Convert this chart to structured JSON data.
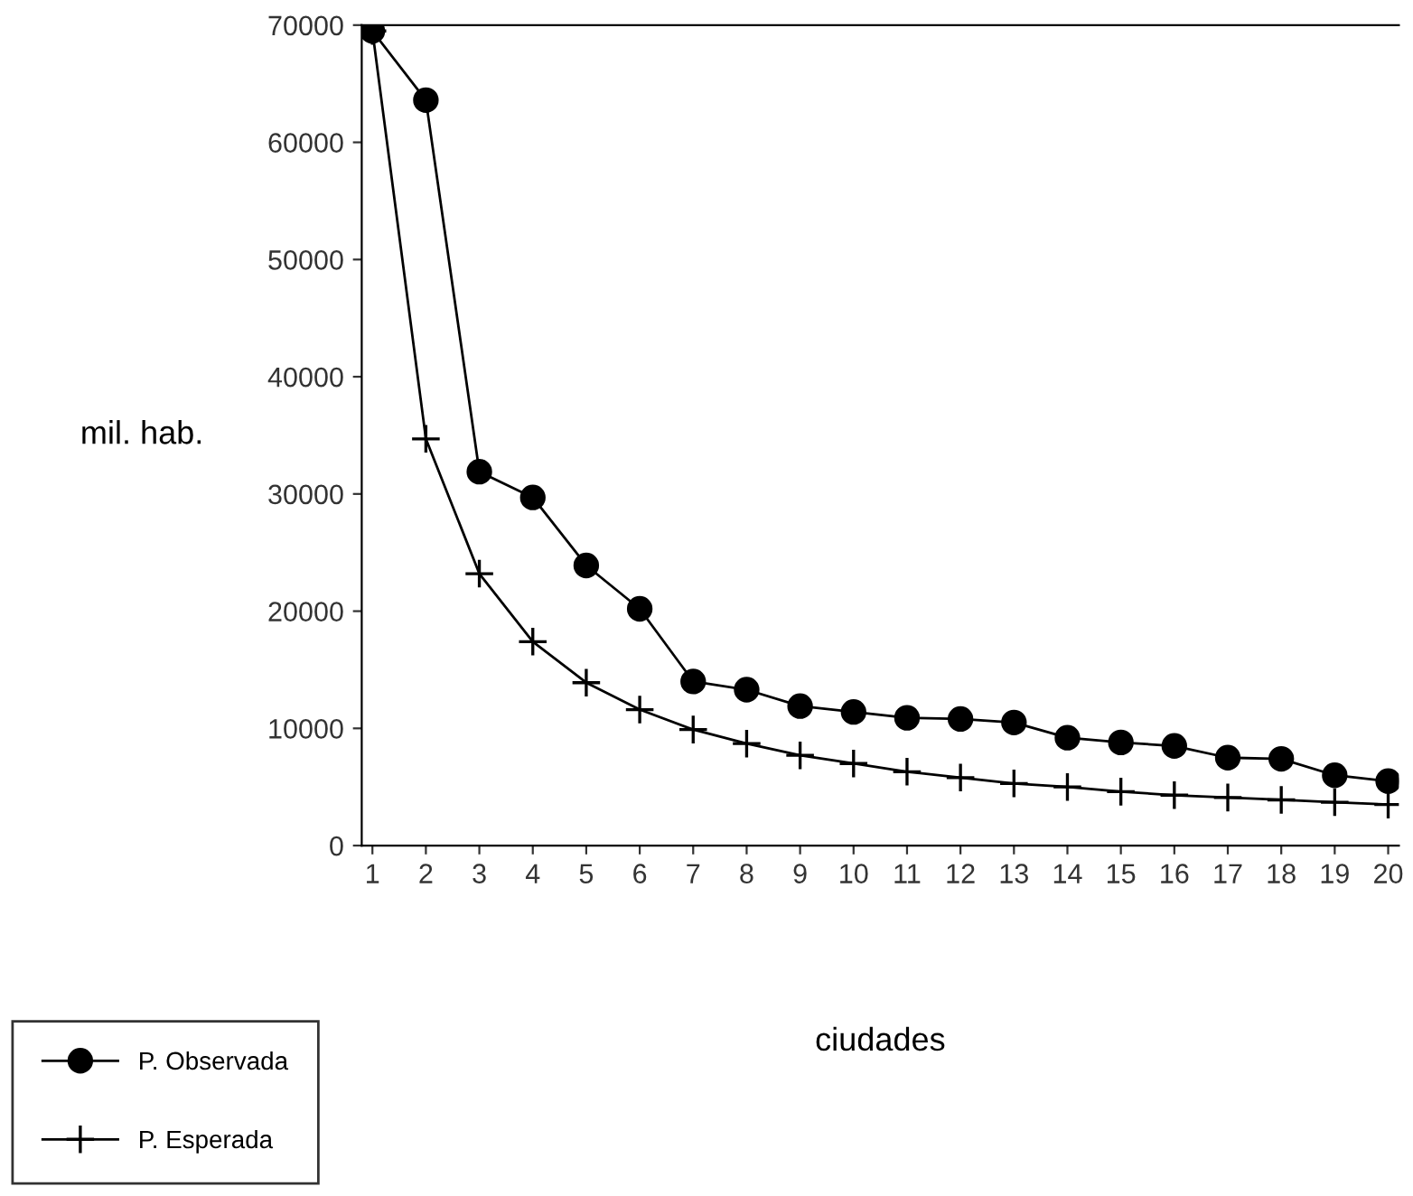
{
  "chart_data": {
    "type": "line",
    "xlabel": "ciudades",
    "ylabel": "mil. hab.",
    "x": [
      1,
      2,
      3,
      4,
      5,
      6,
      7,
      8,
      9,
      10,
      11,
      12,
      13,
      14,
      15,
      16,
      17,
      18,
      19,
      20
    ],
    "xlim": [
      0.8,
      20.2
    ],
    "xticks": [
      1,
      2,
      3,
      4,
      5,
      6,
      7,
      8,
      9,
      10,
      11,
      12,
      13,
      14,
      15,
      16,
      17,
      18,
      19,
      20
    ],
    "ylim": [
      0,
      70000
    ],
    "yticks": [
      0,
      10000,
      20000,
      30000,
      40000,
      50000,
      60000,
      70000
    ],
    "grid": false,
    "legend": "bottom left",
    "series": [
      {
        "name": "P. Observada",
        "color": "#000000",
        "marker": "circle",
        "values": [
          69500,
          63600,
          31900,
          29700,
          23900,
          20200,
          14000,
          13300,
          11900,
          11400,
          10900,
          10800,
          10500,
          9200,
          8800,
          8500,
          7500,
          7400,
          6000,
          5500
        ]
      },
      {
        "name": "P. Esperada",
        "color": "#000000",
        "marker": "cross",
        "values": [
          69500,
          34700,
          23200,
          17400,
          13900,
          11600,
          9900,
          8700,
          7700,
          7000,
          6300,
          5800,
          5300,
          5000,
          4600,
          4300,
          4100,
          3900,
          3700,
          3500
        ]
      }
    ]
  }
}
